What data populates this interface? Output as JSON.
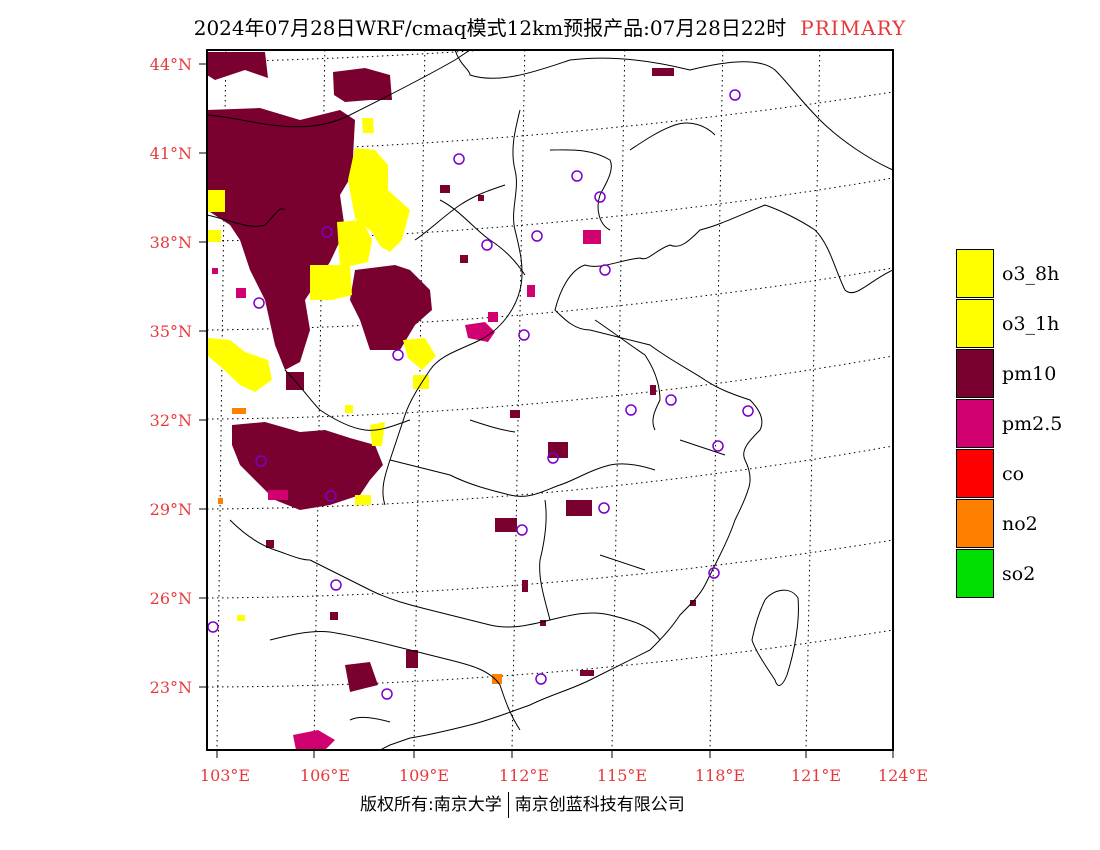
{
  "title": {
    "text": "2024年07月28日WRF/cmaq模式12km预报产品:07月28日22时",
    "tag": "PRIMARY"
  },
  "latitude_labels": [
    "44°N",
    "41°N",
    "38°N",
    "35°N",
    "32°N",
    "29°N",
    "26°N",
    "23°N"
  ],
  "longitude_labels": [
    "103°E",
    "106°E",
    "109°E",
    "112°E",
    "115°E",
    "118°E",
    "121°E",
    "124°E"
  ],
  "legend": [
    {
      "label": "o3_8h",
      "color": "#ffff00"
    },
    {
      "label": "o3_1h",
      "color": "#ffff00"
    },
    {
      "label": "pm10",
      "color": "#7a0030"
    },
    {
      "label": "pm2.5",
      "color": "#d00070"
    },
    {
      "label": "co",
      "color": "#ff0000"
    },
    {
      "label": "no2",
      "color": "#ff8000"
    },
    {
      "label": "so2",
      "color": "#00dd00"
    }
  ],
  "footer": {
    "left": "版权所有:南京大学",
    "right": "南京创蓝科技有限公司"
  },
  "colors": {
    "label_red": "#e8383b",
    "station_marker": "#7a00cc"
  }
}
